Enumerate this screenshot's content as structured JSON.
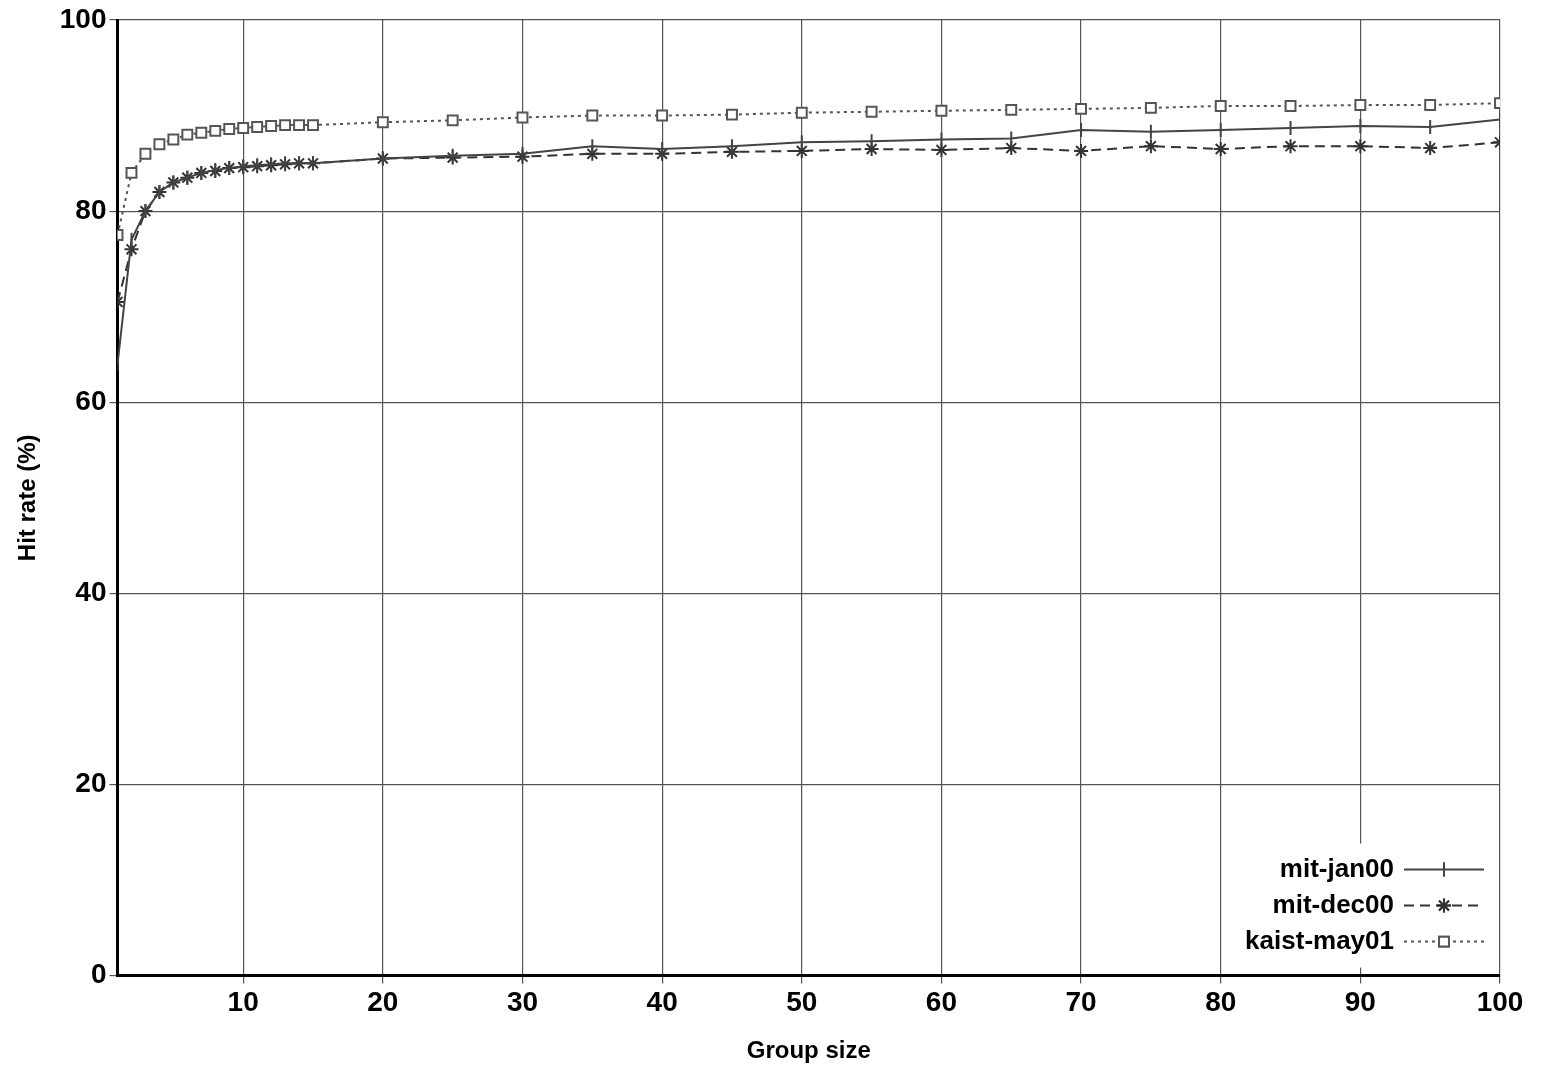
{
  "chart_data": {
    "type": "line",
    "x_label": "Group size",
    "y_label": "Hit rate (%)",
    "x": [
      1,
      2,
      3,
      4,
      5,
      6,
      7,
      8,
      9,
      10,
      11,
      12,
      13,
      14,
      15,
      20,
      25,
      30,
      35,
      40,
      45,
      50,
      55,
      60,
      65,
      70,
      75,
      80,
      85,
      90,
      95,
      100
    ],
    "series": [
      {
        "name": "mit-jan00",
        "color": "#444444",
        "marker": "vline",
        "line_style": "solid",
        "values": [
          64,
          77,
          80,
          82,
          83,
          83.5,
          84,
          84.3,
          84.5,
          84.7,
          84.8,
          84.9,
          85,
          85,
          85,
          85.5,
          85.8,
          86,
          86.8,
          86.5,
          86.8,
          87.2,
          87.3,
          87.5,
          87.6,
          88.5,
          88.3,
          88.5,
          88.7,
          88.9,
          88.8,
          89.6
        ]
      },
      {
        "name": "mit-dec00",
        "color": "#333333",
        "marker": "star",
        "line_style": "dashed",
        "values": [
          70.5,
          76,
          80,
          82,
          83,
          83.5,
          84,
          84.2,
          84.5,
          84.6,
          84.7,
          84.8,
          84.9,
          85,
          85,
          85.5,
          85.6,
          85.7,
          86,
          86,
          86.2,
          86.3,
          86.5,
          86.4,
          86.6,
          86.3,
          86.8,
          86.5,
          86.8,
          86.8,
          86.6,
          87.2
        ]
      },
      {
        "name": "kaist-may01",
        "color": "#555555",
        "marker": "square",
        "line_style": "dotted",
        "values": [
          77.5,
          84,
          86,
          87,
          87.5,
          88,
          88.2,
          88.4,
          88.6,
          88.7,
          88.8,
          88.9,
          89,
          89,
          89,
          89.3,
          89.5,
          89.8,
          90,
          90,
          90.1,
          90.3,
          90.4,
          90.5,
          90.6,
          90.7,
          90.8,
          91,
          91,
          91.1,
          91.1,
          91.3
        ]
      }
    ],
    "xlim": [
      1,
      100
    ],
    "xticks": [
      10,
      20,
      30,
      40,
      50,
      60,
      70,
      80,
      90,
      100
    ],
    "ylim": [
      0,
      100
    ],
    "yticks": [
      0,
      20,
      40,
      60,
      80,
      100
    ],
    "grid": true,
    "legend": "lower right"
  }
}
